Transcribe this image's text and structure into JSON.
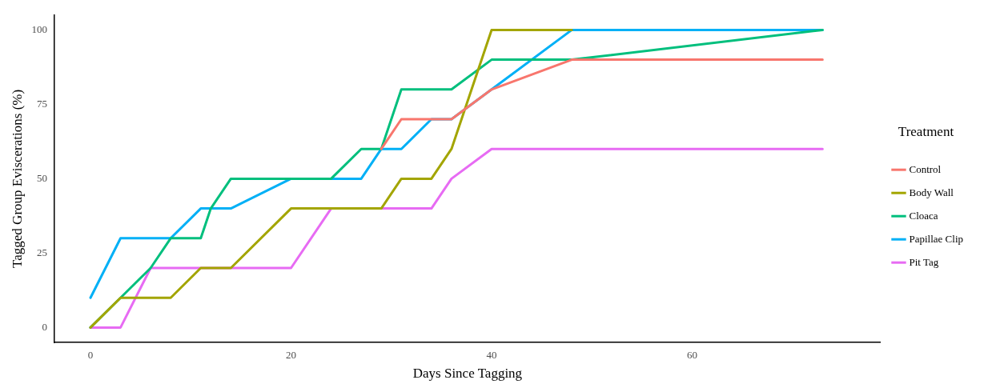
{
  "chart_data": {
    "type": "line",
    "xlabel": "Days Since Tagging",
    "ylabel": "Tagged Group Eviscerations (%)",
    "legend_title": "Treatment",
    "legend": "right",
    "grid": false,
    "marker": "none",
    "line_style": "solid",
    "xlim": [
      -3.6,
      78.8
    ],
    "xticks": [
      0,
      20,
      40,
      60
    ],
    "ylim": [
      -5,
      105
    ],
    "yticks": [
      0,
      25,
      50,
      75,
      100
    ],
    "series": [
      {
        "name": "Control",
        "color": "#f8766d",
        "x": [
          29,
          31,
          34,
          36,
          40,
          48,
          73
        ],
        "values": [
          60,
          70,
          70,
          70,
          80,
          90,
          90
        ]
      },
      {
        "name": "Body Wall",
        "color": "#a3a500",
        "x": [
          0,
          3,
          8,
          11,
          14,
          20,
          24,
          29,
          31,
          34,
          36,
          40,
          48
        ],
        "values": [
          0,
          10,
          10,
          20,
          20,
          40,
          40,
          40,
          50,
          50,
          60,
          100,
          100
        ]
      },
      {
        "name": "Cloaca",
        "color": "#00bf7d",
        "x": [
          0,
          3,
          6,
          8,
          11,
          12,
          14,
          24,
          27,
          29,
          31,
          36,
          40,
          48,
          73
        ],
        "values": [
          0,
          10,
          20,
          30,
          30,
          40,
          50,
          50,
          60,
          60,
          80,
          80,
          90,
          90,
          100
        ]
      },
      {
        "name": "Papillae Clip",
        "color": "#00b0f6",
        "x": [
          0,
          3,
          8,
          11,
          14,
          20,
          27,
          29,
          31,
          34,
          36,
          40,
          48,
          73
        ],
        "values": [
          10,
          30,
          30,
          40,
          40,
          50,
          50,
          60,
          60,
          70,
          70,
          80,
          100,
          100
        ]
      },
      {
        "name": "Pit Tag",
        "color": "#e76bf3",
        "x": [
          0,
          3,
          6,
          20,
          24,
          34,
          36,
          40,
          73
        ],
        "values": [
          0,
          0,
          20,
          20,
          40,
          40,
          50,
          60,
          60
        ]
      }
    ]
  }
}
